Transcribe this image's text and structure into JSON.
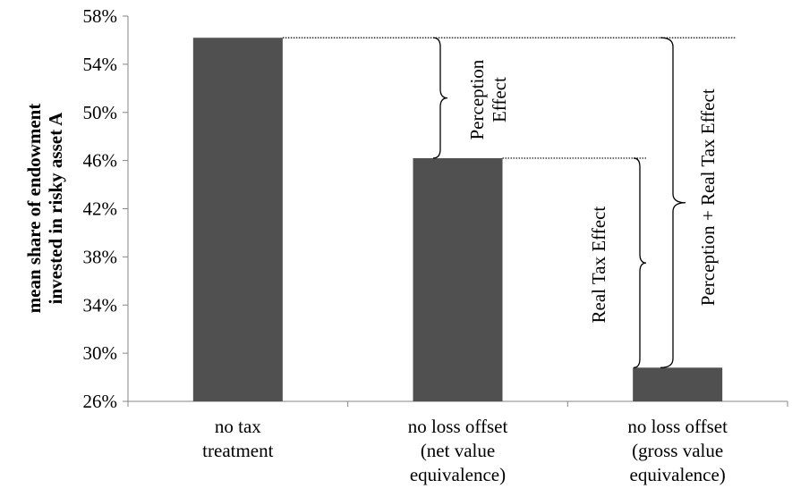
{
  "chart_data": {
    "type": "bar",
    "categories": [
      [
        "no tax",
        "treatment"
      ],
      [
        "no loss offset",
        "(net value",
        "equivalence)"
      ],
      [
        "no loss offset",
        "(gross value",
        "equivalence)"
      ]
    ],
    "values": [
      56.2,
      46.2,
      28.8
    ],
    "ylabel": [
      "mean share of endowment",
      "invested in risky asset A"
    ],
    "ylim": [
      26,
      58
    ],
    "yticks": [
      "26%",
      "30%",
      "34%",
      "38%",
      "42%",
      "46%",
      "50%",
      "54%",
      "58%"
    ],
    "ytick_values": [
      26,
      30,
      34,
      38,
      42,
      46,
      50,
      54,
      58
    ],
    "bar_color": "#505050",
    "grid": false,
    "annotations": [
      {
        "label": [
          "Perception",
          "Effect"
        ],
        "from": 56.2,
        "to": 46.2
      },
      {
        "label": [
          "Real Tax Effect"
        ],
        "from": 46.2,
        "to": 28.8
      },
      {
        "label": [
          "Perception + Real Tax Effect"
        ],
        "from": 56.2,
        "to": 28.8
      }
    ]
  }
}
